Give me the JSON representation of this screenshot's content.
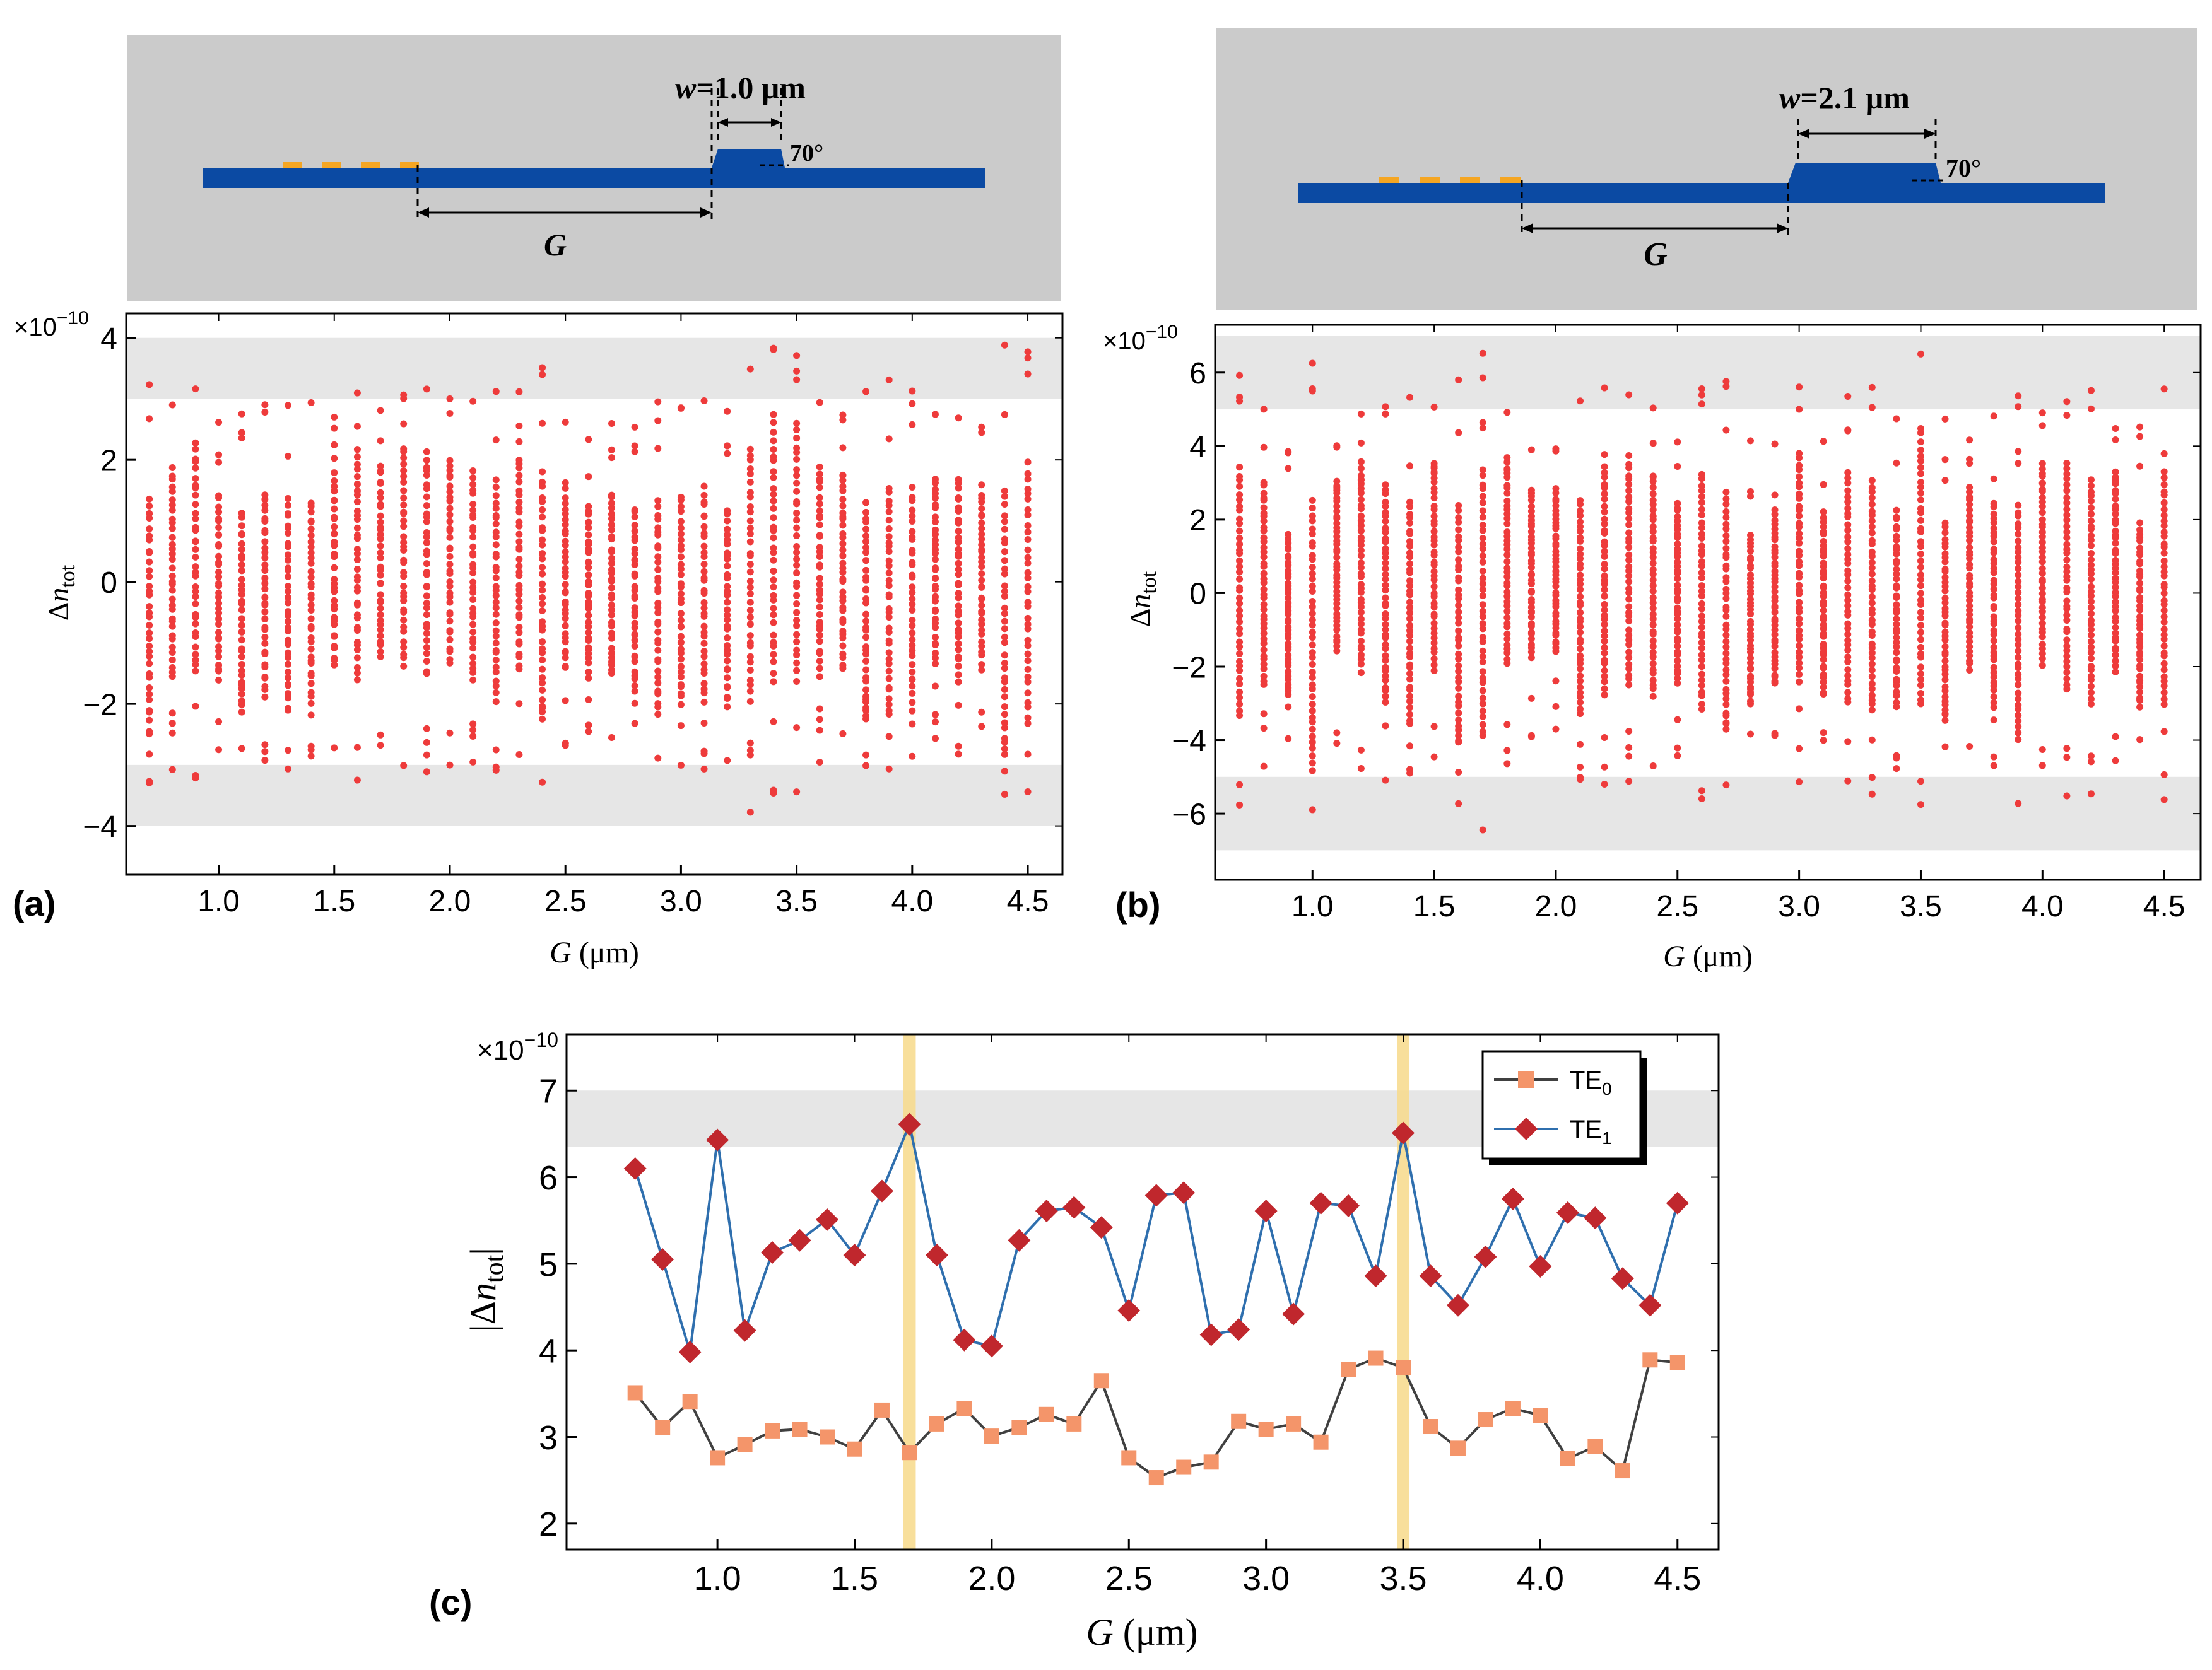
{
  "panels": {
    "a": {
      "label": "(a)",
      "schematic": {
        "w_label": "w=1.0 μm",
        "w_label_italic": "w",
        "w_label_value": "=1.0 μm",
        "angle_label": "70°",
        "gap_label": "G"
      },
      "chart_data": {
        "type": "scatter",
        "title": "",
        "xlabel_italic": "G",
        "xlabel_unit": " (μm)",
        "ylabel_main": "Δ",
        "ylabel_italic": "n",
        "ylabel_sub": "tot",
        "multiplier": "×10",
        "multiplier_exp": "−10",
        "xlim": [
          0.6,
          4.65
        ],
        "ylim": [
          -4.8,
          4.4
        ],
        "xticks": [
          1.0,
          1.5,
          2.0,
          2.5,
          3.0,
          3.5,
          4.0,
          4.5
        ],
        "xticklabels": [
          "1.0",
          "1.5",
          "2.0",
          "2.5",
          "3.0",
          "3.5",
          "4.0",
          "4.5"
        ],
        "yticks": [
          4,
          2,
          0,
          -2,
          -4
        ],
        "yticklabels": [
          "4",
          "2",
          "0",
          "−2",
          "−4"
        ],
        "shaded_bands": [
          [
            3.0,
            4.0
          ],
          [
            -4.0,
            -3.0
          ]
        ],
        "x": [
          0.7,
          0.8,
          0.9,
          1.0,
          1.1,
          1.2,
          1.3,
          1.4,
          1.5,
          1.6,
          1.7,
          1.8,
          1.9,
          2.0,
          2.1,
          2.2,
          2.3,
          2.4,
          2.5,
          2.6,
          2.7,
          2.8,
          2.9,
          3.0,
          3.1,
          3.2,
          3.3,
          3.4,
          3.5,
          3.6,
          3.7,
          3.8,
          3.9,
          4.0,
          4.1,
          4.2,
          4.3,
          4.4,
          4.5
        ],
        "amplitude": [
          3.51,
          3.11,
          3.41,
          2.76,
          2.91,
          3.07,
          3.09,
          3.0,
          2.86,
          3.31,
          2.82,
          3.15,
          3.33,
          3.01,
          3.11,
          3.26,
          3.15,
          3.65,
          2.76,
          2.53,
          2.65,
          2.71,
          3.18,
          3.09,
          3.15,
          2.94,
          3.78,
          3.91,
          3.8,
          3.12,
          2.87,
          3.2,
          3.33,
          3.25,
          2.75,
          2.89,
          2.61,
          3.89,
          3.86
        ],
        "points_per_x": 40
      }
    },
    "b": {
      "label": "(b)",
      "schematic": {
        "w_label": "w=2.1 μm",
        "w_label_italic": "w",
        "w_label_value": "=2.1 μm",
        "angle_label": "70°",
        "gap_label": "G"
      },
      "chart_data": {
        "type": "scatter",
        "title": "",
        "xlabel_italic": "G",
        "xlabel_unit": " (μm)",
        "ylabel_main": "Δ",
        "ylabel_italic": "n",
        "ylabel_sub": "tot",
        "multiplier": "×10",
        "multiplier_exp": "−10",
        "xlim": [
          0.6,
          4.65
        ],
        "ylim": [
          -7.8,
          7.3
        ],
        "xticks": [
          1.0,
          1.5,
          2.0,
          2.5,
          3.0,
          3.5,
          4.0,
          4.5
        ],
        "xticklabels": [
          "1.0",
          "1.5",
          "2.0",
          "2.5",
          "3.0",
          "3.5",
          "4.0",
          "4.5"
        ],
        "yticks": [
          6,
          4,
          2,
          0,
          -2,
          -4,
          -6
        ],
        "yticklabels": [
          "6",
          "4",
          "2",
          "0",
          "−2",
          "−4",
          "−6"
        ],
        "shaded_bands": [
          [
            5.0,
            7.0
          ],
          [
            -7.0,
            -5.0
          ]
        ],
        "x": [
          0.7,
          0.8,
          0.9,
          1.0,
          1.1,
          1.2,
          1.3,
          1.4,
          1.5,
          1.6,
          1.7,
          1.8,
          1.9,
          2.0,
          2.1,
          2.2,
          2.3,
          2.4,
          2.5,
          2.6,
          2.7,
          2.8,
          2.9,
          3.0,
          3.1,
          3.2,
          3.3,
          3.4,
          3.5,
          3.6,
          3.7,
          3.8,
          3.9,
          4.0,
          4.1,
          4.2,
          4.3,
          4.4,
          4.5
        ],
        "amplitude": [
          6.1,
          5.05,
          3.98,
          6.43,
          4.23,
          5.13,
          5.27,
          5.51,
          5.1,
          5.84,
          6.61,
          5.1,
          4.12,
          4.05,
          5.27,
          5.61,
          5.65,
          5.42,
          4.46,
          5.79,
          5.82,
          4.18,
          4.24,
          5.61,
          4.42,
          5.7,
          5.67,
          4.86,
          6.51,
          4.86,
          4.52,
          5.08,
          5.75,
          4.97,
          5.59,
          5.53,
          4.83,
          4.52,
          5.7
        ],
        "points_per_x": 46
      }
    },
    "c": {
      "label": "(c)",
      "chart_data": {
        "type": "line",
        "title": "",
        "xlabel_italic": "G",
        "xlabel_unit": " (μm)",
        "ylabel_main": "|Δ",
        "ylabel_italic": "n",
        "ylabel_sub": "tot",
        "ylabel_end": "|",
        "multiplier": "×10",
        "multiplier_exp": "−10",
        "xlim": [
          0.45,
          4.65
        ],
        "ylim": [
          1.7,
          7.65
        ],
        "xticks": [
          1.0,
          1.5,
          2.0,
          2.5,
          3.0,
          3.5,
          4.0,
          4.5
        ],
        "xticklabels": [
          "1.0",
          "1.5",
          "2.0",
          "2.5",
          "3.0",
          "3.5",
          "4.0",
          "4.5"
        ],
        "yticks": [
          2,
          3,
          4,
          5,
          6,
          7
        ],
        "yticklabels": [
          "2",
          "3",
          "4",
          "5",
          "6",
          "7"
        ],
        "shaded_band": [
          6.35,
          7.0
        ],
        "highlight_x": [
          1.7,
          3.5
        ],
        "x": [
          0.7,
          0.8,
          0.9,
          1.0,
          1.1,
          1.2,
          1.3,
          1.4,
          1.5,
          1.6,
          1.7,
          1.8,
          1.9,
          2.0,
          2.1,
          2.2,
          2.3,
          2.4,
          2.5,
          2.6,
          2.7,
          2.8,
          2.9,
          3.0,
          3.1,
          3.2,
          3.3,
          3.4,
          3.5,
          3.6,
          3.7,
          3.8,
          3.9,
          4.0,
          4.1,
          4.2,
          4.3,
          4.4,
          4.5
        ],
        "series": [
          {
            "name": "TE",
            "sub": "0",
            "marker": "square",
            "line_color": "#404040",
            "marker_color": "#f4956a",
            "values": [
              3.51,
              3.11,
              3.41,
              2.76,
              2.91,
              3.07,
              3.09,
              3.0,
              2.86,
              3.31,
              2.82,
              3.15,
              3.33,
              3.01,
              3.11,
              3.26,
              3.15,
              3.65,
              2.76,
              2.53,
              2.65,
              2.71,
              3.18,
              3.09,
              3.15,
              2.94,
              3.78,
              3.91,
              3.8,
              3.12,
              2.87,
              3.2,
              3.33,
              3.25,
              2.75,
              2.89,
              2.61,
              3.89,
              3.86
            ]
          },
          {
            "name": "TE",
            "sub": "1",
            "marker": "diamond",
            "line_color": "#2f6fae",
            "marker_color": "#c0272d",
            "values": [
              6.1,
              5.05,
              3.98,
              6.43,
              4.23,
              5.13,
              5.27,
              5.51,
              5.1,
              5.84,
              6.61,
              5.1,
              4.12,
              4.05,
              5.27,
              5.61,
              5.65,
              5.42,
              4.46,
              5.79,
              5.82,
              4.18,
              4.24,
              5.61,
              4.42,
              5.7,
              5.67,
              4.86,
              6.51,
              4.86,
              4.52,
              5.08,
              5.75,
              4.97,
              5.59,
              5.53,
              4.83,
              4.52,
              5.7
            ]
          }
        ]
      }
    }
  },
  "colors": {
    "waveguide": "#0b4aa3",
    "electrode": "#f5a623",
    "schematic_bg": "#cbcbcb",
    "band": "#e6e6e6",
    "scatter": "#ee3b3b",
    "highlight": "#f7d98a"
  }
}
